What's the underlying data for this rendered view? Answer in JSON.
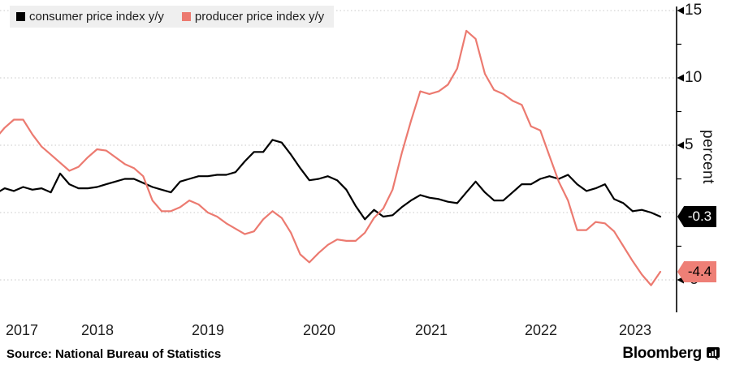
{
  "legend": {
    "items": [
      {
        "label": "consumer price index y/y",
        "color": "#000000"
      },
      {
        "label": "producer price index y/y",
        "color": "#ec7a70"
      }
    ]
  },
  "y_axis": {
    "unit_label": "percent",
    "tick_labels": [
      "15",
      "10",
      "5",
      "-5"
    ],
    "major_tick_values": [
      15,
      10,
      5,
      -5
    ],
    "minor_tick_values": [
      12.5,
      7.5,
      2.5,
      -2.5
    ],
    "gridline_values": [
      15,
      10,
      5,
      0,
      -5
    ]
  },
  "x_axis": {
    "year_labels": [
      "2017",
      "2018",
      "2019",
      "2020",
      "2021",
      "2022",
      "2023"
    ]
  },
  "value_tags": [
    {
      "label": "-0.3",
      "value": -0.3,
      "bg": "#000000",
      "text_color": "#ffffff"
    },
    {
      "label": "-4.4",
      "value": -4.4,
      "bg": "#ee7f76",
      "text_color": "#000000"
    }
  ],
  "footer": {
    "source": "Source: National Bureau of Statistics",
    "brand": "Bloomberg"
  },
  "chart_data": {
    "type": "line",
    "title": "",
    "ylabel": "percent",
    "ylim": [
      -7.4,
      15.3
    ],
    "grid": "horizontal-dotted",
    "legend_position": "top-left",
    "x": [
      "2017-07",
      "2017-08",
      "2017-09",
      "2017-10",
      "2017-11",
      "2017-12",
      "2018-01",
      "2018-02",
      "2018-03",
      "2018-04",
      "2018-05",
      "2018-06",
      "2018-07",
      "2018-08",
      "2018-09",
      "2018-10",
      "2018-11",
      "2018-12",
      "2019-01",
      "2019-02",
      "2019-03",
      "2019-04",
      "2019-05",
      "2019-06",
      "2019-07",
      "2019-08",
      "2019-09",
      "2019-10",
      "2019-11",
      "2019-12",
      "2020-01",
      "2020-02",
      "2020-03",
      "2020-04",
      "2020-05",
      "2020-06",
      "2020-07",
      "2020-08",
      "2020-09",
      "2020-10",
      "2020-11",
      "2020-12",
      "2021-01",
      "2021-02",
      "2021-03",
      "2021-04",
      "2021-05",
      "2021-06",
      "2021-07",
      "2021-08",
      "2021-09",
      "2021-10",
      "2021-11",
      "2021-12",
      "2022-01",
      "2022-02",
      "2022-03",
      "2022-04",
      "2022-05",
      "2022-06",
      "2022-07",
      "2022-08",
      "2022-09",
      "2022-10",
      "2022-11",
      "2022-12",
      "2023-01",
      "2023-02",
      "2023-03",
      "2023-04",
      "2023-05",
      "2023-06",
      "2023-07"
    ],
    "series": [
      {
        "name": "consumer price index y/y",
        "color": "#000000",
        "values": [
          1.4,
          1.8,
          1.6,
          1.9,
          1.7,
          1.8,
          1.5,
          2.9,
          2.1,
          1.8,
          1.8,
          1.9,
          2.1,
          2.3,
          2.5,
          2.5,
          2.2,
          1.9,
          1.7,
          1.5,
          2.3,
          2.5,
          2.7,
          2.7,
          2.8,
          2.8,
          3.0,
          3.8,
          4.5,
          4.5,
          5.4,
          5.2,
          4.3,
          3.3,
          2.4,
          2.5,
          2.7,
          2.4,
          1.7,
          0.5,
          -0.5,
          0.2,
          -0.3,
          -0.2,
          0.4,
          0.9,
          1.3,
          1.1,
          1.0,
          0.8,
          0.7,
          1.5,
          2.3,
          1.5,
          0.9,
          0.9,
          1.5,
          2.1,
          2.1,
          2.5,
          2.7,
          2.5,
          2.8,
          2.1,
          1.6,
          1.8,
          2.1,
          1.0,
          0.7,
          0.1,
          0.2,
          0.0,
          -0.3
        ]
      },
      {
        "name": "producer price index y/y",
        "color": "#ec7a70",
        "values": [
          5.5,
          6.3,
          6.9,
          6.9,
          5.8,
          4.9,
          4.3,
          3.7,
          3.1,
          3.4,
          4.1,
          4.7,
          4.6,
          4.1,
          3.6,
          3.3,
          2.7,
          0.9,
          0.1,
          0.1,
          0.4,
          0.9,
          0.6,
          0.0,
          -0.3,
          -0.8,
          -1.2,
          -1.6,
          -1.4,
          -0.5,
          0.1,
          -0.4,
          -1.5,
          -3.1,
          -3.7,
          -3.0,
          -2.4,
          -2.0,
          -2.1,
          -2.1,
          -1.5,
          -0.4,
          0.3,
          1.7,
          4.4,
          6.8,
          9.0,
          8.8,
          9.0,
          9.5,
          10.7,
          13.5,
          12.9,
          10.3,
          9.1,
          8.8,
          8.3,
          8.0,
          6.4,
          6.1,
          4.2,
          2.3,
          0.9,
          -1.3,
          -1.3,
          -0.7,
          -0.8,
          -1.4,
          -2.5,
          -3.6,
          -4.6,
          -5.4,
          -4.4
        ]
      }
    ],
    "last_value_labels": [
      -0.3,
      -4.4
    ]
  }
}
